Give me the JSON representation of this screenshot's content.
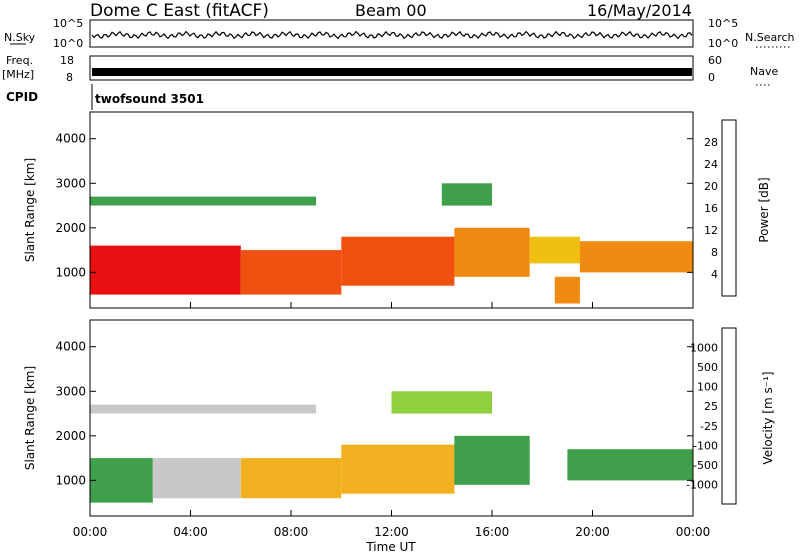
{
  "header": {
    "radar_title": "Dome C East (fitACF)",
    "beam_label": "Beam 00",
    "date_label": "16/May/2014"
  },
  "strips": {
    "nsky": {
      "label": "N.Sky",
      "left_ticks": [
        "10^5",
        "10^0"
      ],
      "right_ticks": [
        "10^5",
        "10^0"
      ],
      "right_label": "N.Search"
    },
    "freq": {
      "label_line1": "Freq.",
      "label_line2": "[MHz]",
      "left_ticks": [
        "18",
        "8"
      ],
      "right_ticks": [
        "60",
        "0"
      ],
      "right_label": "Nave"
    },
    "cpid": {
      "label": "CPID",
      "program": "twofsound 3501"
    }
  },
  "colors": {
    "power_scale": [
      "#0018e8",
      "#1f4fa8",
      "#2f7f6f",
      "#3f9f4a",
      "#9fcf2f",
      "#f0c010",
      "#f08a10",
      "#f05010",
      "#e81010"
    ],
    "velocity_scale": [
      "#1030b8",
      "#2a6ac8",
      "#2f7f5f",
      "#3f9f4a",
      "#8fd03f",
      "#c8c8c8",
      "#f0b020",
      "#f08a10",
      "#f05010",
      "#e81010"
    ]
  },
  "chart_data": [
    {
      "type": "heatmap",
      "panel": "power",
      "ylabel": "Slant Range [km]",
      "yticks": [
        "1000",
        "2000",
        "3000",
        "4000"
      ],
      "ylim": [
        200,
        4600
      ],
      "xlim_hours": [
        0,
        24
      ],
      "colorbar": {
        "label": "Power [dB]",
        "ticks": [
          "4",
          "8",
          "12",
          "16",
          "20",
          "24",
          "28"
        ],
        "range": [
          0,
          32
        ]
      },
      "regions": [
        {
          "t": [
            0.0,
            6.0
          ],
          "r": [
            500,
            1600
          ],
          "value": 29
        },
        {
          "t": [
            6.0,
            10.0
          ],
          "r": [
            500,
            1500
          ],
          "value": 27
        },
        {
          "t": [
            10.0,
            14.5
          ],
          "r": [
            700,
            1800
          ],
          "value": 26
        },
        {
          "t": [
            14.5,
            17.5
          ],
          "r": [
            900,
            2000
          ],
          "value": 22
        },
        {
          "t": [
            17.5,
            19.5
          ],
          "r": [
            1200,
            1800
          ],
          "value": 20
        },
        {
          "t": [
            19.5,
            24.0
          ],
          "r": [
            1000,
            1700
          ],
          "value": 24
        },
        {
          "t": [
            0.0,
            9.0
          ],
          "r": [
            2500,
            2700
          ],
          "value": 14
        },
        {
          "t": [
            14.0,
            16.0
          ],
          "r": [
            2500,
            3000
          ],
          "value": 12
        },
        {
          "t": [
            18.5,
            19.5
          ],
          "r": [
            300,
            900
          ],
          "value": 22
        }
      ]
    },
    {
      "type": "heatmap",
      "panel": "velocity",
      "ylabel": "Slant Range [km]",
      "xlabel": "Time UT",
      "yticks": [
        "1000",
        "2000",
        "3000",
        "4000"
      ],
      "xticks": [
        "00:00",
        "04:00",
        "08:00",
        "12:00",
        "16:00",
        "20:00",
        "00:00"
      ],
      "ylim": [
        200,
        4600
      ],
      "xlim_hours": [
        0,
        24
      ],
      "colorbar": {
        "label": "Velocity [m s⁻¹]",
        "ticks": [
          "1000",
          "500",
          "100",
          "25",
          "-25",
          "-100",
          "-500",
          "-1000"
        ],
        "range": [
          -1000,
          1000
        ]
      },
      "regions": [
        {
          "t": [
            0.0,
            2.5
          ],
          "r": [
            500,
            1500
          ],
          "value": 50
        },
        {
          "t": [
            2.5,
            6.0
          ],
          "r": [
            600,
            1500
          ],
          "value": -50
        },
        {
          "t": [
            6.0,
            10.0
          ],
          "r": [
            600,
            1500
          ],
          "value": -120
        },
        {
          "t": [
            10.0,
            14.5
          ],
          "r": [
            700,
            1800
          ],
          "value": -150
        },
        {
          "t": [
            14.5,
            17.5
          ],
          "r": [
            900,
            2000
          ],
          "value": 30
        },
        {
          "t": [
            19.0,
            24.0
          ],
          "r": [
            1000,
            1700
          ],
          "value": 60
        },
        {
          "t": [
            12.0,
            16.0
          ],
          "r": [
            2500,
            3000
          ],
          "value": 0
        },
        {
          "t": [
            0.0,
            9.0
          ],
          "r": [
            2500,
            2700
          ],
          "value": -40
        }
      ]
    }
  ]
}
